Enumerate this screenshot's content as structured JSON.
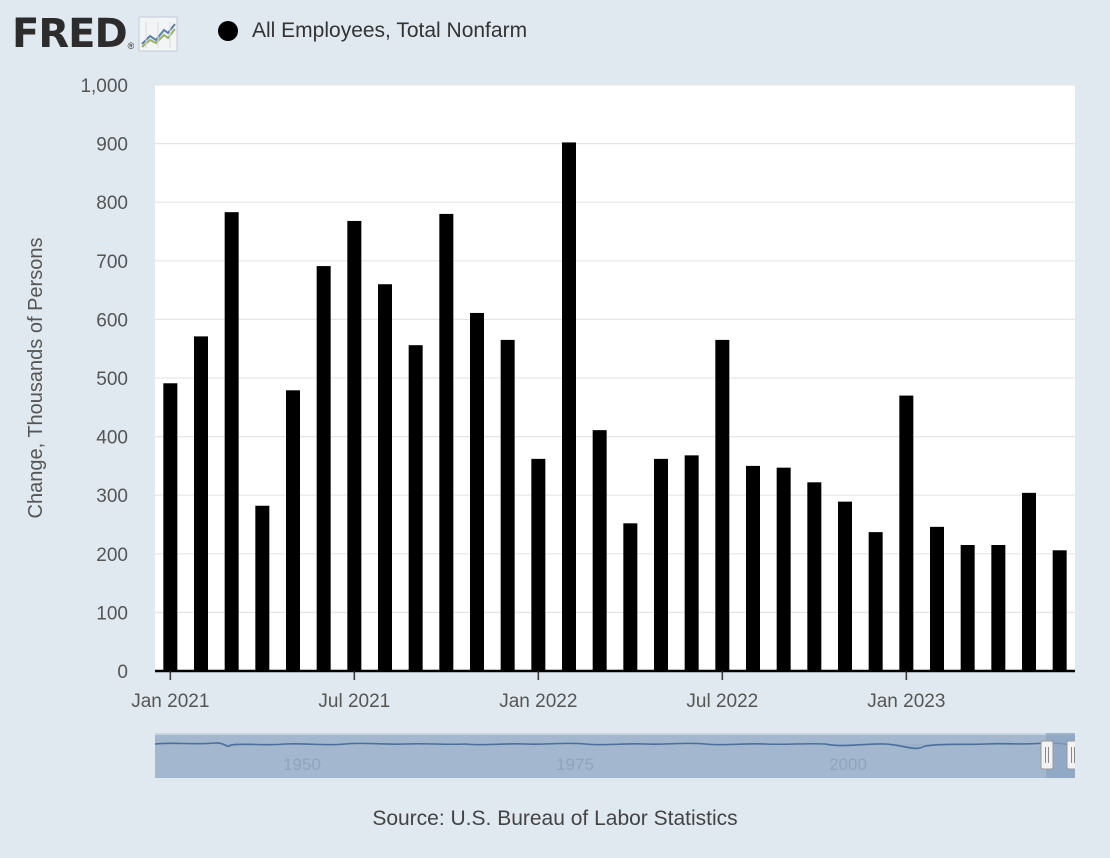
{
  "header": {
    "logo_text": "FRED",
    "logo_reg": "®",
    "legend_label": "All Employees, Total Nonfarm",
    "legend_color": "#000000"
  },
  "chart_data": {
    "type": "bar",
    "title": "",
    "series_name": "All Employees, Total Nonfarm",
    "ylabel": "Change, Thousands of Persons",
    "xlabel": "",
    "ylim": [
      0,
      1000
    ],
    "yticks": [
      0,
      100,
      200,
      300,
      400,
      500,
      600,
      700,
      800,
      900,
      1000
    ],
    "ytick_labels": [
      "0",
      "100",
      "200",
      "300",
      "400",
      "500",
      "600",
      "700",
      "800",
      "900",
      "1,000"
    ],
    "xtick_labels": [
      "Jan 2021",
      "Jul 2021",
      "Jan 2022",
      "Jul 2022",
      "Jan 2023"
    ],
    "xtick_indices": [
      0,
      6,
      12,
      18,
      24
    ],
    "categories": [
      "2021-01",
      "2021-02",
      "2021-03",
      "2021-04",
      "2021-05",
      "2021-06",
      "2021-07",
      "2021-08",
      "2021-09",
      "2021-10",
      "2021-11",
      "2021-12",
      "2022-01",
      "2022-02",
      "2022-03",
      "2022-04",
      "2022-05",
      "2022-06",
      "2022-07",
      "2022-08",
      "2022-09",
      "2022-10",
      "2022-11",
      "2022-12",
      "2023-01",
      "2023-02",
      "2023-03",
      "2023-04",
      "2023-05",
      "2023-06"
    ],
    "values": [
      491,
      571,
      783,
      282,
      479,
      691,
      768,
      660,
      556,
      780,
      611,
      565,
      362,
      902,
      411,
      252,
      362,
      368,
      565,
      350,
      347,
      322,
      289,
      237,
      470,
      246,
      215,
      215,
      304,
      206
    ],
    "grid": true,
    "bar_color": "#000000"
  },
  "navigator": {
    "labels": [
      "1950",
      "1975",
      "2000"
    ]
  },
  "source": "Source: U.S. Bureau of Labor Statistics"
}
